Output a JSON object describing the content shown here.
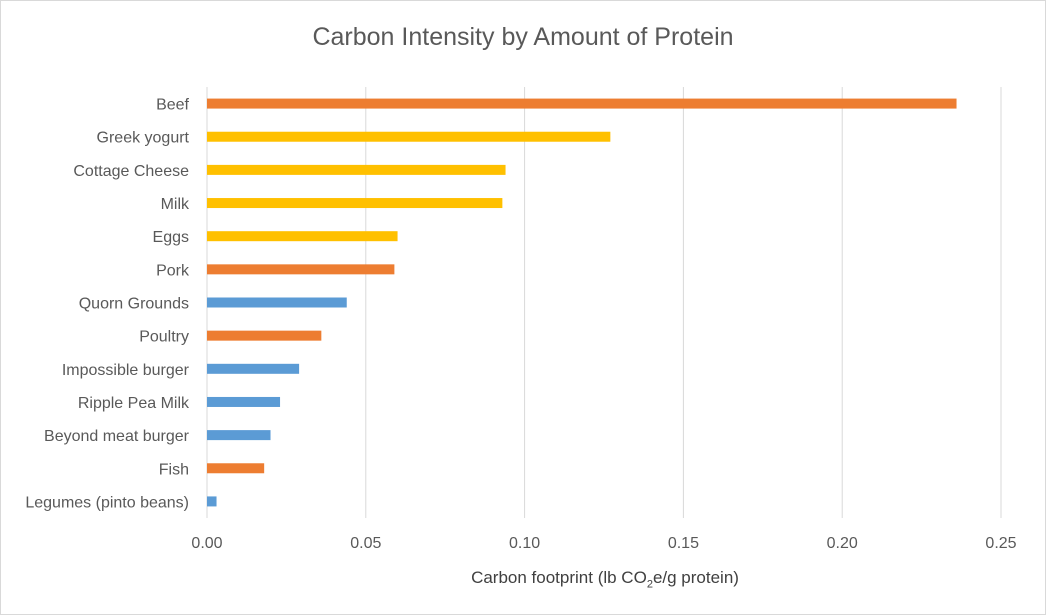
{
  "chart_data": {
    "type": "bar",
    "orientation": "horizontal",
    "title": "Carbon Intensity by Amount of Protein",
    "xlabel_parts": [
      "Carbon footprint (lb CO",
      "2",
      "e/g protein)"
    ],
    "xlim": [
      0,
      0.25
    ],
    "xticks": [
      "0.00",
      "0.05",
      "0.10",
      "0.15",
      "0.20",
      "0.25"
    ],
    "grid": true,
    "categories": [
      "Beef",
      "Greek yogurt",
      "Cottage Cheese",
      "Milk",
      "Eggs",
      "Pork",
      "Quorn Grounds",
      "Poultry",
      "Impossible burger",
      "Ripple Pea Milk",
      "Beyond meat burger",
      "Fish",
      "Legumes (pinto beans)"
    ],
    "values": [
      0.236,
      0.127,
      0.094,
      0.093,
      0.06,
      0.059,
      0.044,
      0.036,
      0.029,
      0.023,
      0.02,
      0.018,
      0.003
    ],
    "colors": [
      "#ED7D31",
      "#FFC000",
      "#FFC000",
      "#FFC000",
      "#FFC000",
      "#ED7D31",
      "#5B9BD5",
      "#ED7D31",
      "#5B9BD5",
      "#5B9BD5",
      "#5B9BD5",
      "#ED7D31",
      "#5B9BD5"
    ]
  }
}
